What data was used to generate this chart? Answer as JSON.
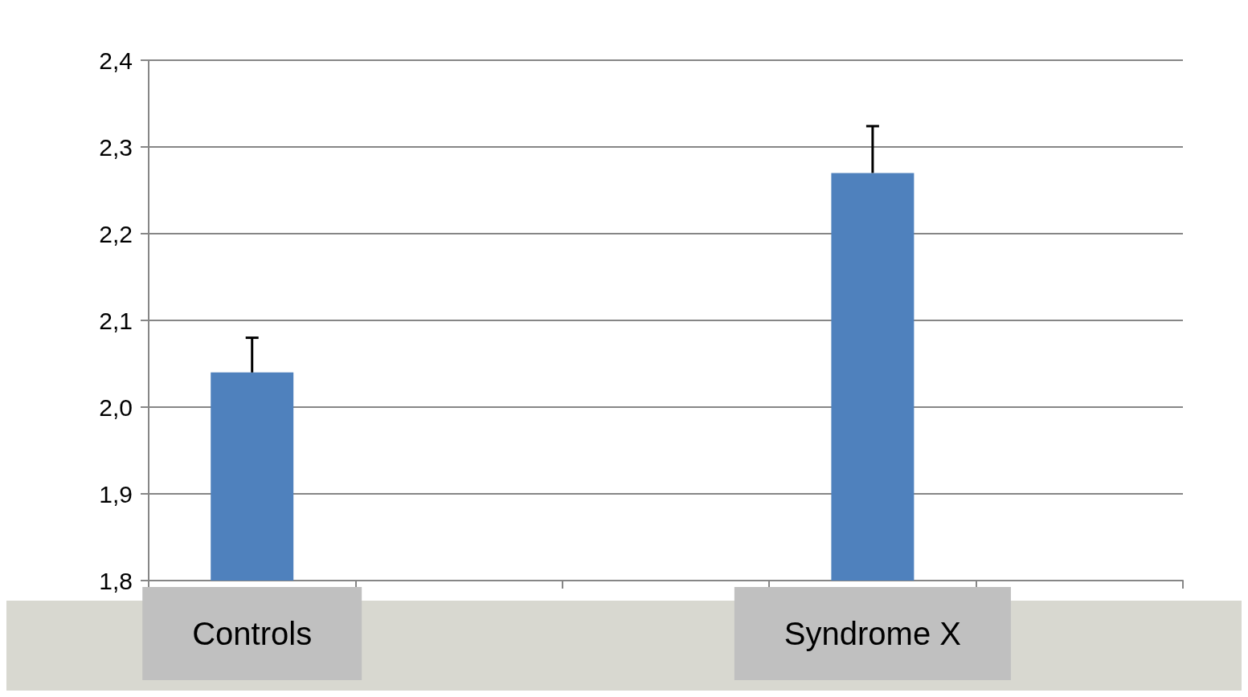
{
  "chart_data": {
    "type": "bar",
    "categories": [
      "Controls",
      null,
      null,
      "Syndrome X",
      null
    ],
    "values": [
      2.04,
      null,
      null,
      2.27,
      null
    ],
    "errors": [
      [
        2.04,
        2.08
      ],
      null,
      null,
      [
        2.27,
        2.324
      ],
      null
    ],
    "color": "#4f81bd",
    "ylim": [
      1.8,
      2.4
    ],
    "yticks": [
      {
        "value": 1.8,
        "label": "1,8"
      },
      {
        "value": 1.9,
        "label": "1,9"
      },
      {
        "value": 2.0,
        "label": "2,0"
      },
      {
        "value": 2.1,
        "label": "2,1"
      },
      {
        "value": 2.2,
        "label": "2,2"
      },
      {
        "value": 2.3,
        "label": "2,3"
      },
      {
        "value": 2.4,
        "label": "2,4"
      }
    ],
    "grid": "y"
  }
}
